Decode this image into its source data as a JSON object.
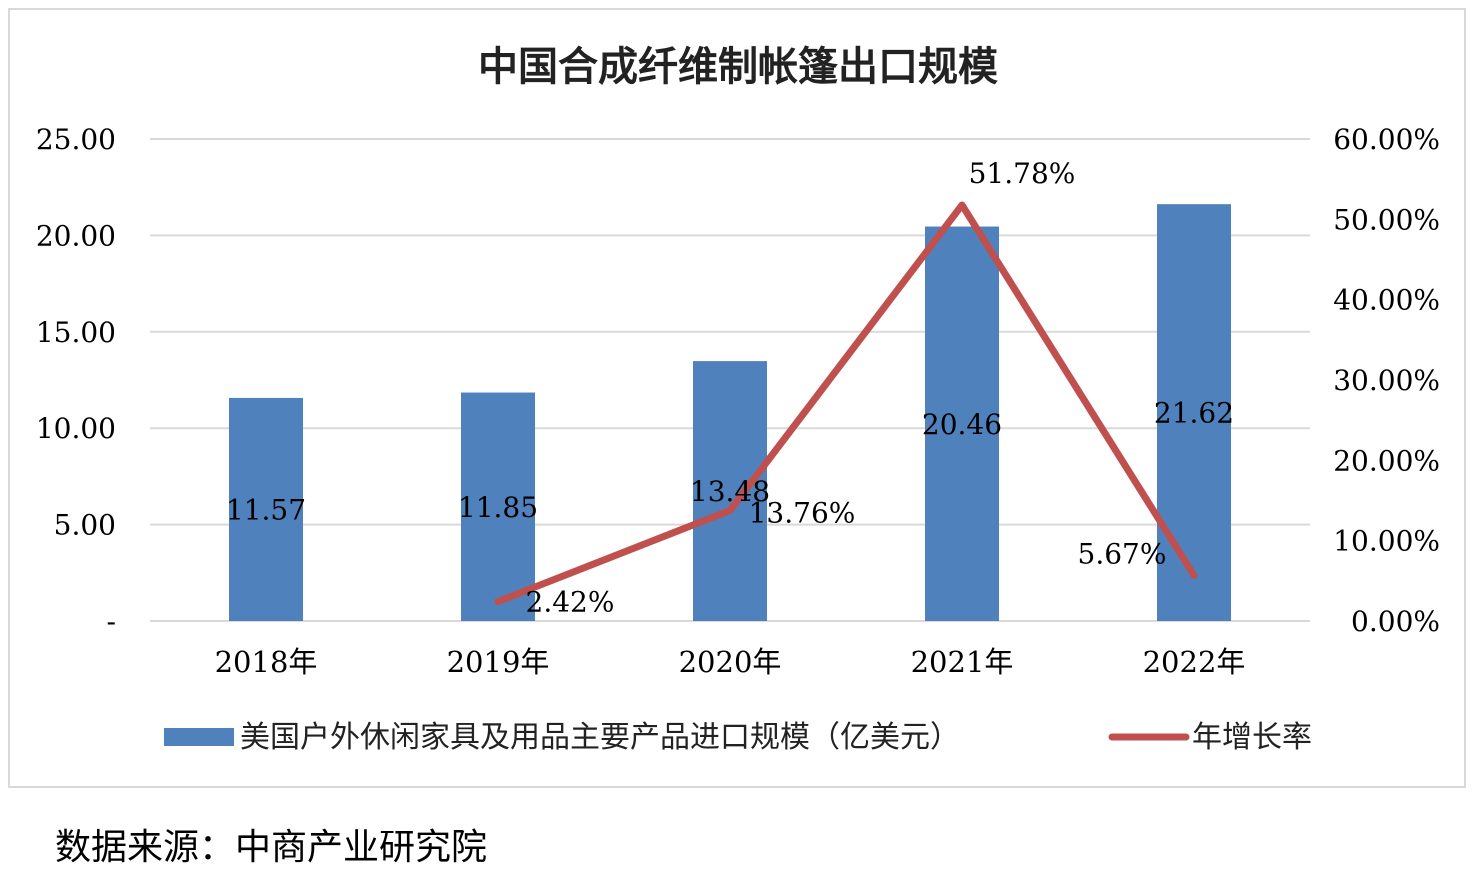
{
  "source_note": "数据来源：中商产业研究院",
  "colors": {
    "bar": "#4f81bd",
    "line": "#c0504d",
    "grid": "#d9d9d9",
    "text": "#000000",
    "frame": "#d9d9d9"
  },
  "chart_data": {
    "type": "bar",
    "title": "中国合成纤维制帐篷出口规模",
    "categories": [
      "2018年",
      "2019年",
      "2020年",
      "2021年",
      "2022年"
    ],
    "series": [
      {
        "name": "美国户外休闲家具及用品主要产品进口规模（亿美元）",
        "type": "bar",
        "axis": "left",
        "values": [
          11.57,
          11.85,
          13.48,
          20.46,
          21.62
        ],
        "labels": [
          "11.57",
          "11.85",
          "13.48",
          "20.46",
          "21.62"
        ]
      },
      {
        "name": "年增长率",
        "type": "line",
        "axis": "right",
        "values": [
          null,
          2.42,
          13.76,
          51.78,
          5.67
        ],
        "labels": [
          "",
          "2.42%",
          "13.76%",
          "51.78%",
          "5.67%"
        ]
      }
    ],
    "y_left": {
      "min": 0,
      "max": 25,
      "ticks": [
        "-",
        "5.00",
        "10.00",
        "15.00",
        "20.00",
        "25.00"
      ],
      "tick_values": [
        0,
        5,
        10,
        15,
        20,
        25
      ]
    },
    "y_right": {
      "min": 0,
      "max": 60,
      "ticks": [
        "0.00%",
        "10.00%",
        "20.00%",
        "30.00%",
        "40.00%",
        "50.00%",
        "60.00%"
      ],
      "tick_values": [
        0,
        10,
        20,
        30,
        40,
        50,
        60
      ]
    },
    "grid": true,
    "legend_position": "bottom"
  }
}
